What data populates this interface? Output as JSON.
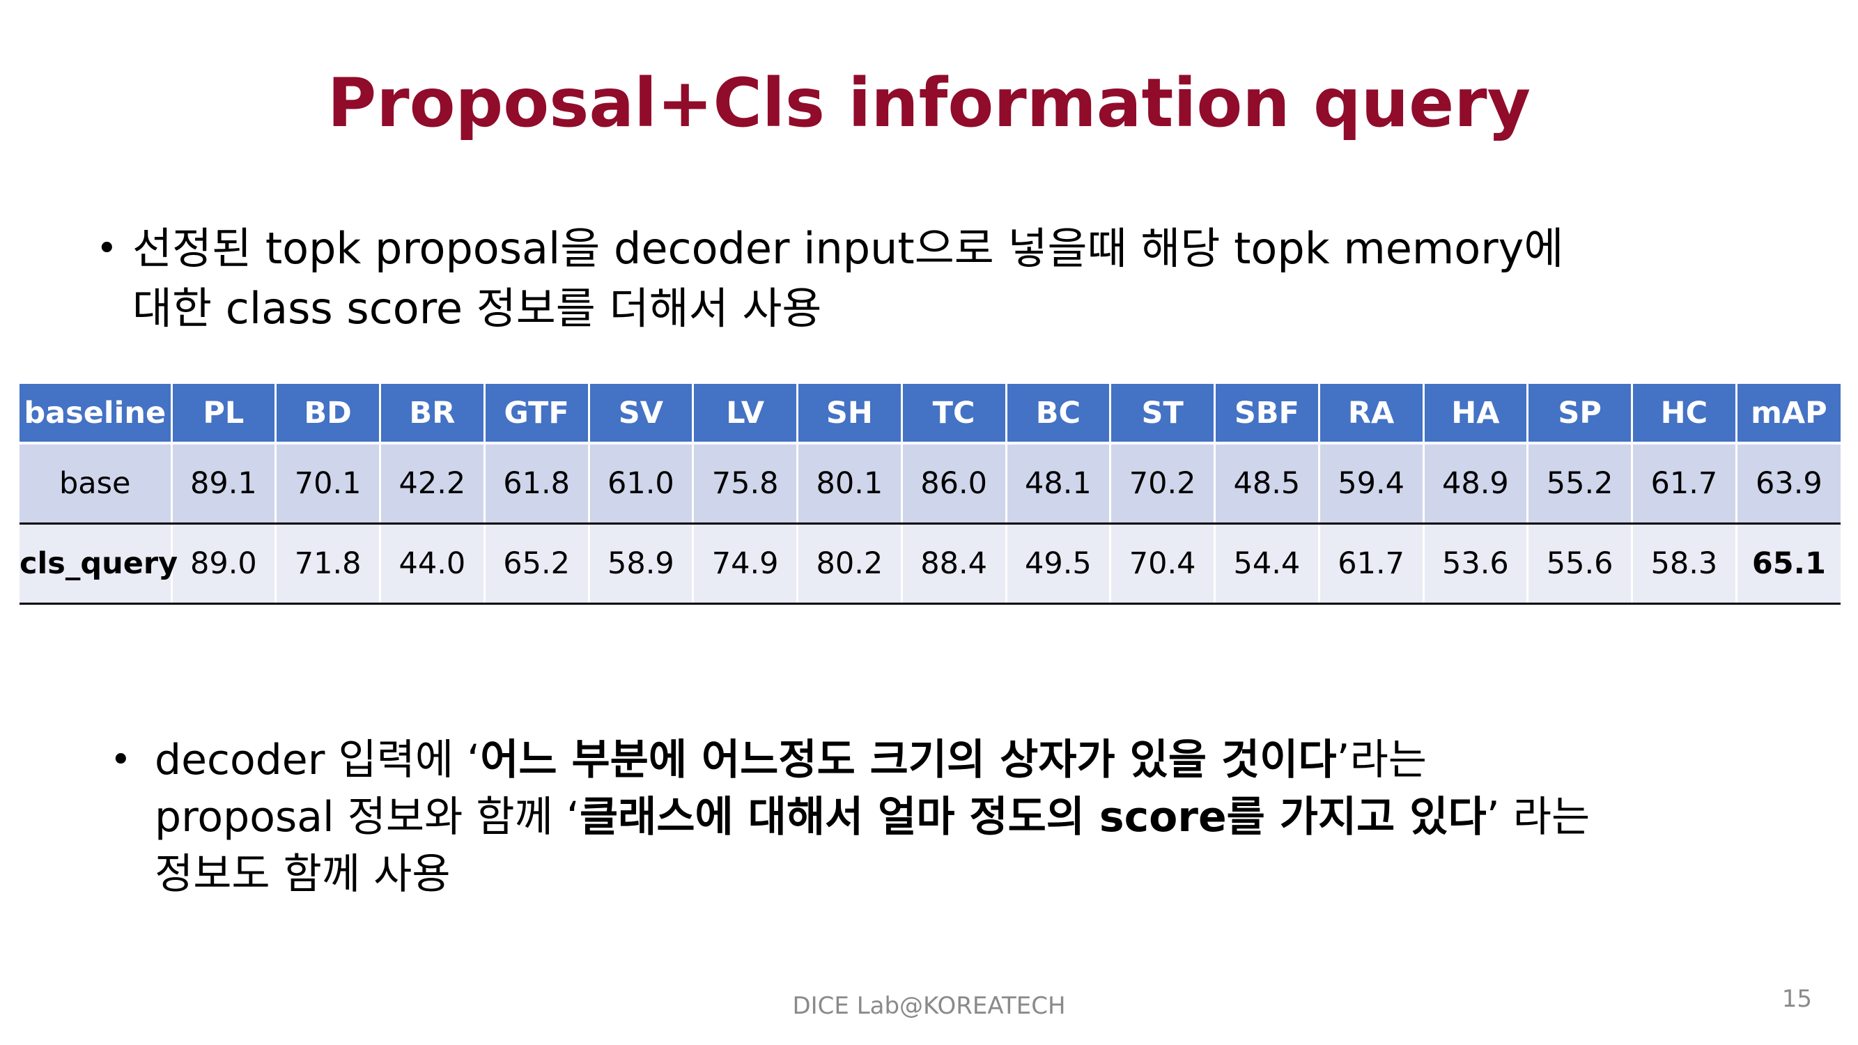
{
  "slide": {
    "title": "Proposal+Cls information query",
    "bullet1": {
      "line1": "선정된 topk proposal을 decoder input으로 넣을때 해당 topk memory에",
      "line2": "대한 class score 정보를 더해서 사용"
    },
    "bullet2": {
      "line1_pre": "decoder 입력에 ‘",
      "line1_bold": "어느 부분에 어느정도 크기의 상자가 있을 것이다",
      "line1_post": "’라는",
      "line2_pre": "proposal 정보와 함께 ‘",
      "line2_bold": "클래스에 대해서 얼마 정도의 score를 가지고 있다",
      "line2_post": "’ 라는",
      "line3": "정보도 함께 사용"
    },
    "bullet_symbol": "•",
    "footer": "DICE Lab@KOREATECH",
    "page_number": "15"
  },
  "table": {
    "headers": [
      "baseline",
      "PL",
      "BD",
      "BR",
      "GTF",
      "SV",
      "LV",
      "SH",
      "TC",
      "BC",
      "ST",
      "SBF",
      "RA",
      "HA",
      "SP",
      "HC",
      "mAP"
    ],
    "rows": [
      {
        "label": "base",
        "values": [
          "89.1",
          "70.1",
          "42.2",
          "61.8",
          "61.0",
          "75.8",
          "80.1",
          "86.0",
          "48.1",
          "70.2",
          "48.5",
          "59.4",
          "48.9",
          "55.2",
          "61.7",
          "63.9"
        ]
      },
      {
        "label": "cls_query",
        "values": [
          "89.0",
          "71.8",
          "44.0",
          "65.2",
          "58.9",
          "74.9",
          "80.2",
          "88.4",
          "49.5",
          "70.4",
          "54.4",
          "61.7",
          "53.6",
          "55.6",
          "58.3",
          "65.1"
        ]
      }
    ]
  },
  "colors": {
    "title": "#900c2a",
    "header_bg": "#4472c4",
    "row1_bg": "#cfd5ea",
    "row2_bg": "#e9ebf5"
  }
}
